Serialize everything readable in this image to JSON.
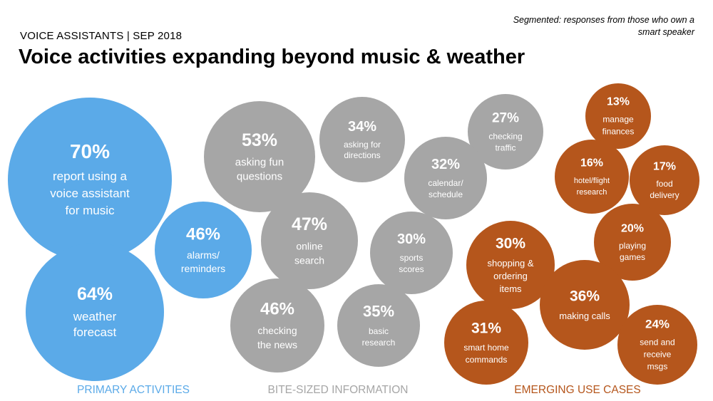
{
  "eyebrow": "VOICE ASSISTANTS | SEP 2018",
  "title": "Voice activities expanding beyond music & weather",
  "note": "Segmented: responses from those who own a smart speaker",
  "colors": {
    "primary": "#5BAAE8",
    "bite": "#A6A6A6",
    "emerging": "#B5561C"
  },
  "chart_data": {
    "type": "bubble",
    "unit": "%",
    "categories": [
      {
        "name": "PRIMARY ACTIVITIES",
        "color": "#5BAAE8"
      },
      {
        "name": "BITE-SIZED INFORMATION",
        "color": "#A6A6A6"
      },
      {
        "name": "EMERGING USE CASES",
        "color": "#B5561C"
      }
    ],
    "bubbles": [
      {
        "category": "PRIMARY ACTIVITIES",
        "value": 70,
        "label_lines": [
          "report using a",
          "voice assistant",
          "for music"
        ]
      },
      {
        "category": "PRIMARY ACTIVITIES",
        "value": 64,
        "label_lines": [
          "weather",
          "forecast"
        ]
      },
      {
        "category": "PRIMARY ACTIVITIES",
        "value": 46,
        "label_lines": [
          "alarms/",
          "reminders"
        ]
      },
      {
        "category": "BITE-SIZED INFORMATION",
        "value": 53,
        "label_lines": [
          "asking fun",
          "questions"
        ]
      },
      {
        "category": "BITE-SIZED INFORMATION",
        "value": 34,
        "label_lines": [
          "asking for",
          "directions"
        ]
      },
      {
        "category": "BITE-SIZED INFORMATION",
        "value": 27,
        "label_lines": [
          "checking",
          "traffic"
        ]
      },
      {
        "category": "BITE-SIZED INFORMATION",
        "value": 32,
        "label_lines": [
          "calendar/",
          "schedule"
        ]
      },
      {
        "category": "BITE-SIZED INFORMATION",
        "value": 47,
        "label_lines": [
          "online",
          "search"
        ]
      },
      {
        "category": "BITE-SIZED INFORMATION",
        "value": 30,
        "label_lines": [
          "sports",
          "scores"
        ]
      },
      {
        "category": "BITE-SIZED INFORMATION",
        "value": 46,
        "label_lines": [
          "checking",
          "the news"
        ]
      },
      {
        "category": "BITE-SIZED INFORMATION",
        "value": 35,
        "label_lines": [
          "basic",
          "research"
        ]
      },
      {
        "category": "EMERGING USE CASES",
        "value": 13,
        "label_lines": [
          "manage",
          "finances"
        ]
      },
      {
        "category": "EMERGING USE CASES",
        "value": 16,
        "label_lines": [
          "hotel/flight",
          "research"
        ]
      },
      {
        "category": "EMERGING USE CASES",
        "value": 17,
        "label_lines": [
          "food",
          "delivery"
        ]
      },
      {
        "category": "EMERGING USE CASES",
        "value": 20,
        "label_lines": [
          "playing",
          "games"
        ]
      },
      {
        "category": "EMERGING USE CASES",
        "value": 30,
        "label_lines": [
          "shopping &",
          "ordering",
          "items"
        ]
      },
      {
        "category": "EMERGING USE CASES",
        "value": 36,
        "label_lines": [
          "making calls"
        ]
      },
      {
        "category": "EMERGING USE CASES",
        "value": 31,
        "label_lines": [
          "smart home",
          "commands"
        ]
      },
      {
        "category": "EMERGING USE CASES",
        "value": 24,
        "label_lines": [
          "send and",
          "receive",
          "msgs"
        ]
      }
    ]
  }
}
